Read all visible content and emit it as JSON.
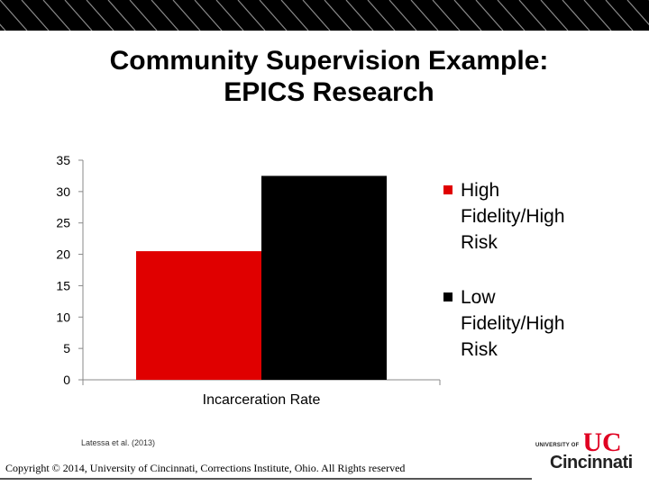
{
  "slide": {
    "title_line1": "Community Supervision Example:",
    "title_line2": "EPICS Research",
    "citation": "Latessa et al. (2013)",
    "copyright": "Copyright © 2014, University of Cincinnati, Corrections Institute, Ohio. All Rights reserved",
    "logo": {
      "small_text": "UNIVERSITY OF",
      "name": "Cincinnati",
      "mark_text": "UC",
      "mark_color": "#e00122"
    }
  },
  "colors": {
    "band_dark": "#000000",
    "band_stripe": "#8a8a8a",
    "axis": "#888888"
  },
  "chart_data": {
    "type": "bar",
    "categories": [
      "Incarceration Rate"
    ],
    "series": [
      {
        "name": "High Fidelity/High Risk",
        "values": [
          20.5
        ],
        "color": "#e00000"
      },
      {
        "name": "Low Fidelity/High Risk",
        "values": [
          32.5
        ],
        "color": "#000000"
      }
    ],
    "ylim": [
      0,
      35
    ],
    "yticks": [
      0,
      5,
      10,
      15,
      20,
      25,
      30,
      35
    ],
    "grid": false,
    "legend_position": "right"
  }
}
